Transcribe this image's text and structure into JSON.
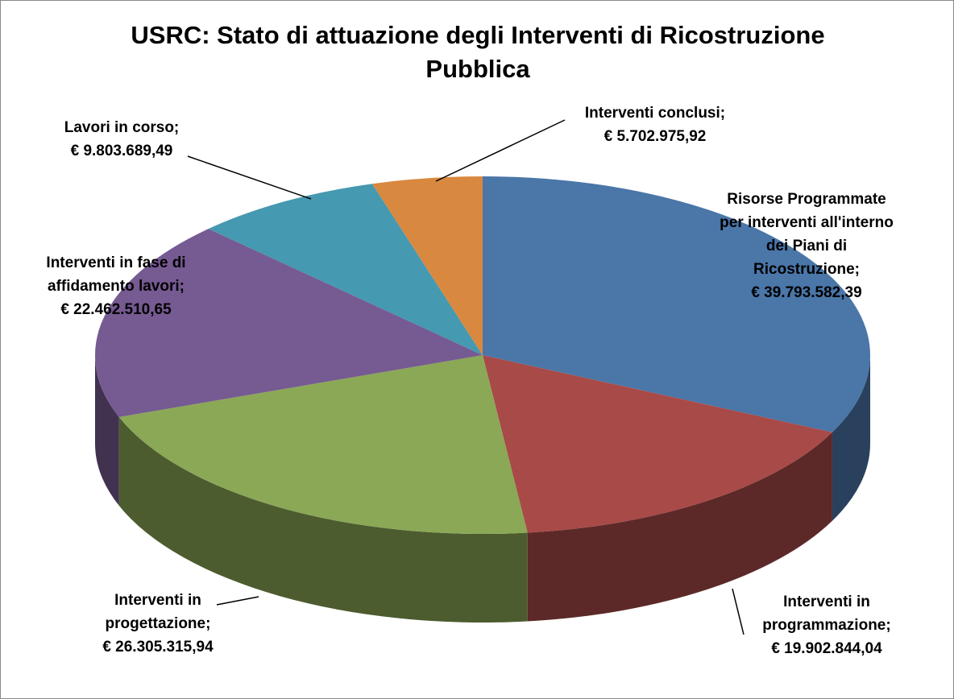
{
  "chart_data": {
    "type": "pie",
    "title": "USRC: Stato di attuazione degli Interventi di Ricostruzione Pubblica",
    "categories": [
      "Risorse Programmate per interventi all'interno dei Piani di Ricostruzione;",
      "Interventi in programmazione;",
      "Interventi in progettazione;",
      "Interventi in fase di affidamento lavori;",
      "Lavori in corso;",
      "Interventi conclusi;"
    ],
    "values": [
      39793582.39,
      19902844.04,
      26305315.94,
      22462510.65,
      9803689.49,
      5702975.92
    ],
    "value_labels": [
      "€ 39.793.582,39",
      "€ 19.902.844,04",
      "€ 26.305.315,94",
      "€ 22.462.510,65",
      "€ 9.803.689,49",
      "€ 5.702.975,92"
    ],
    "colors": [
      "#4a76a8",
      "#a84a48",
      "#8aa856",
      "#765a92",
      "#4599b0",
      "#d9883f"
    ]
  }
}
